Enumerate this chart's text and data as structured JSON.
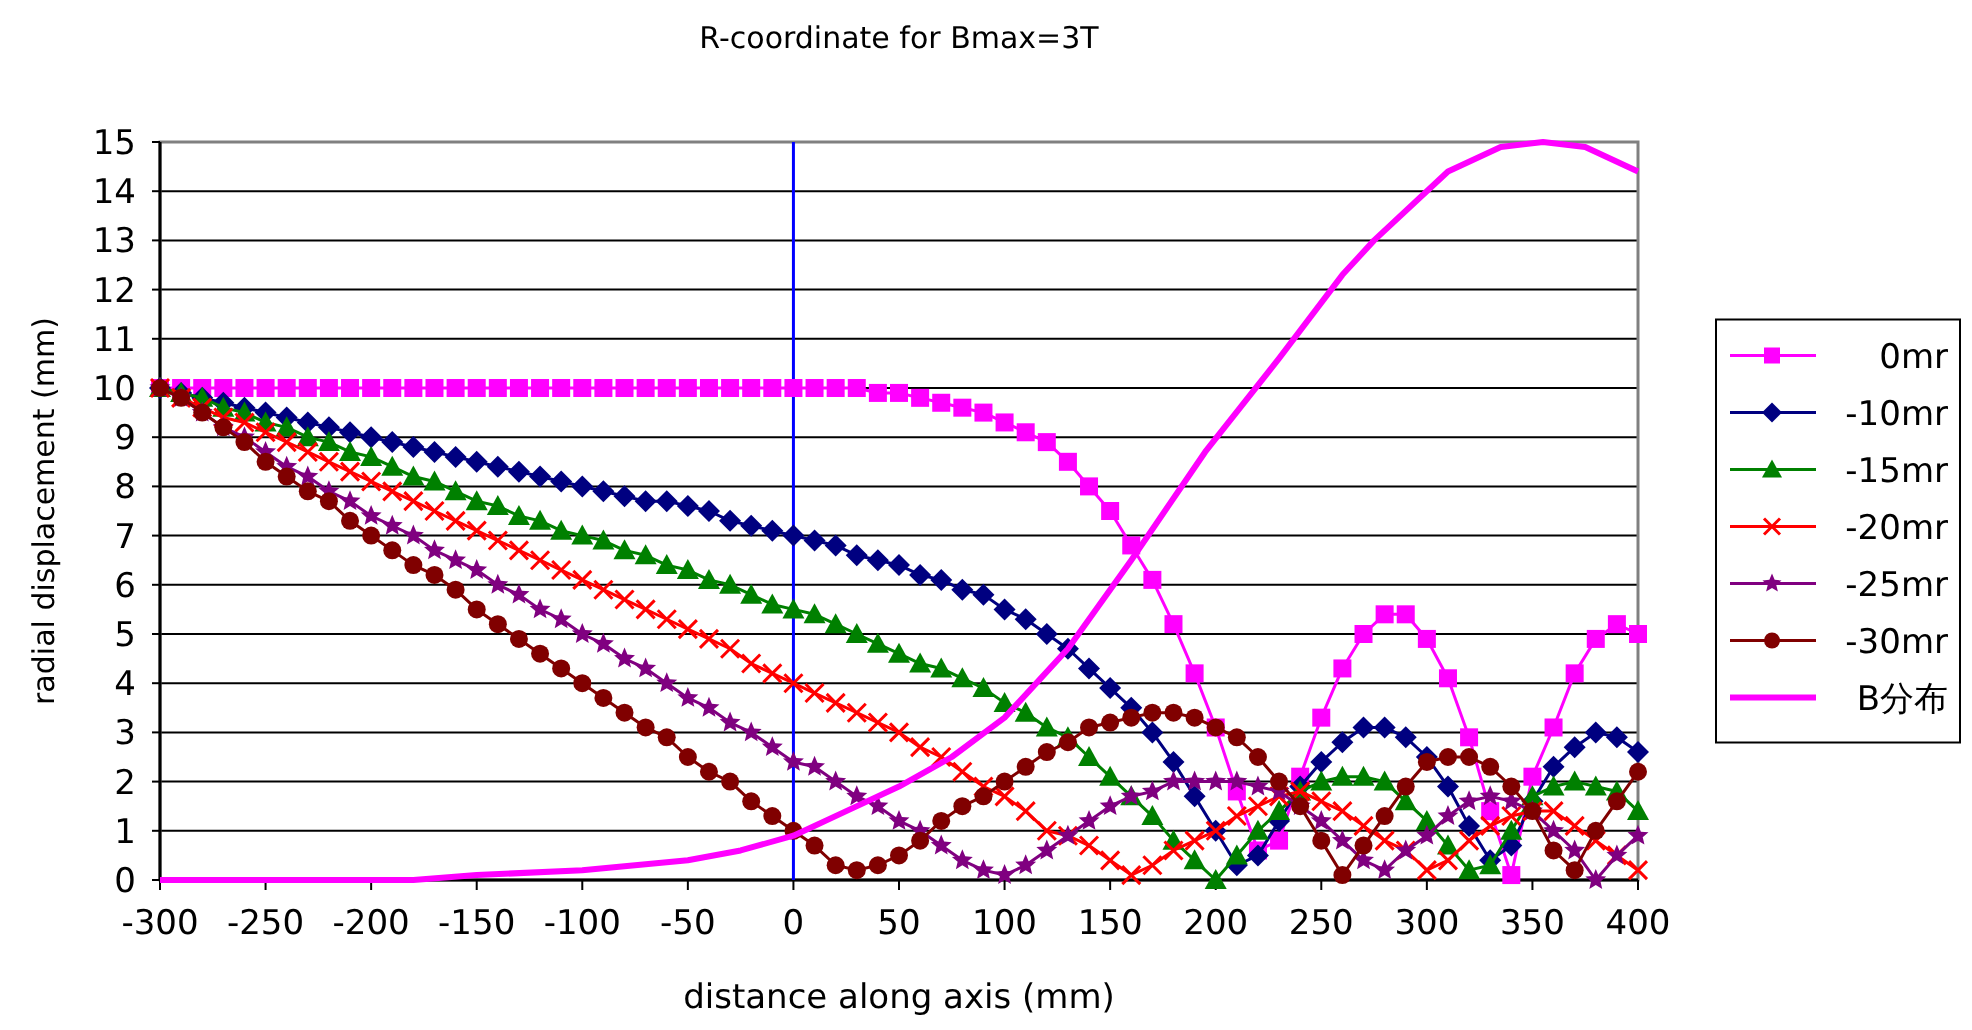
{
  "chart_data": {
    "type": "line",
    "title": "R-coordinate for Bmax=3T",
    "xlabel": "distance along axis (mm)",
    "ylabel": "radial displacement (mm)",
    "x": [
      -300,
      -290,
      -280,
      -270,
      -260,
      -250,
      -240,
      -230,
      -220,
      -210,
      -200,
      -190,
      -180,
      -170,
      -160,
      -150,
      -140,
      -130,
      -120,
      -110,
      -100,
      -90,
      -80,
      -70,
      -60,
      -50,
      -40,
      -30,
      -20,
      -10,
      0,
      10,
      20,
      30,
      40,
      50,
      60,
      70,
      80,
      90,
      100,
      110,
      120,
      130,
      140,
      150,
      160,
      170,
      180,
      190,
      200,
      210,
      220,
      230,
      240,
      250,
      260,
      270,
      280,
      290,
      300,
      310,
      320,
      330,
      340,
      350,
      360,
      370,
      380,
      390,
      400
    ],
    "series": [
      {
        "name": "0mr",
        "color": "#ff00ff",
        "marker": "square",
        "values": [
          10,
          10,
          10,
          10,
          10,
          10,
          10,
          10,
          10,
          10,
          10,
          10,
          10,
          10,
          10,
          10,
          10,
          10,
          10,
          10,
          10,
          10,
          10,
          10,
          10,
          10,
          10,
          10,
          10,
          10,
          10,
          10,
          10,
          10,
          9.9,
          9.9,
          9.8,
          9.7,
          9.6,
          9.5,
          9.3,
          9.1,
          8.9,
          8.5,
          8.0,
          7.5,
          6.8,
          6.1,
          5.2,
          4.2,
          3.1,
          1.8,
          0.6,
          0.8,
          2.1,
          3.3,
          4.3,
          5.0,
          5.4,
          5.4,
          4.9,
          4.1,
          2.9,
          1.4,
          0.1,
          2.1,
          3.1,
          4.2,
          4.9,
          5.2,
          5.0
        ]
      },
      {
        "name": "-10mr",
        "color": "#000080",
        "marker": "diamond",
        "values": [
          10,
          9.9,
          9.8,
          9.7,
          9.6,
          9.5,
          9.4,
          9.3,
          9.2,
          9.1,
          9.0,
          8.9,
          8.8,
          8.7,
          8.6,
          8.5,
          8.4,
          8.3,
          8.2,
          8.1,
          8.0,
          7.9,
          7.8,
          7.7,
          7.7,
          7.6,
          7.5,
          7.3,
          7.2,
          7.1,
          7.0,
          6.9,
          6.8,
          6.6,
          6.5,
          6.4,
          6.2,
          6.1,
          5.9,
          5.8,
          5.5,
          5.3,
          5.0,
          4.7,
          4.3,
          3.9,
          3.5,
          3.0,
          2.4,
          1.7,
          1.0,
          0.3,
          0.5,
          1.2,
          1.9,
          2.4,
          2.8,
          3.1,
          3.1,
          2.9,
          2.5,
          1.9,
          1.1,
          0.4,
          0.7,
          1.6,
          2.3,
          2.7,
          3.0,
          2.9,
          2.6
        ]
      },
      {
        "name": "-15mr",
        "color": "#008000",
        "marker": "triangle",
        "values": [
          10,
          9.9,
          9.8,
          9.6,
          9.5,
          9.3,
          9.2,
          9.0,
          8.9,
          8.7,
          8.6,
          8.4,
          8.2,
          8.1,
          7.9,
          7.7,
          7.6,
          7.4,
          7.3,
          7.1,
          7.0,
          6.9,
          6.7,
          6.6,
          6.4,
          6.3,
          6.1,
          6.0,
          5.8,
          5.6,
          5.5,
          5.4,
          5.2,
          5.0,
          4.8,
          4.6,
          4.4,
          4.3,
          4.1,
          3.9,
          3.6,
          3.4,
          3.1,
          2.9,
          2.5,
          2.1,
          1.7,
          1.3,
          0.8,
          0.4,
          0.0,
          0.5,
          1.0,
          1.4,
          1.8,
          2.0,
          2.1,
          2.1,
          2.0,
          1.6,
          1.2,
          0.7,
          0.2,
          0.3,
          1.0,
          1.7,
          1.9,
          2.0,
          1.9,
          1.8,
          1.4
        ]
      },
      {
        "name": "-20mr",
        "color": "#ff0000",
        "marker": "cross",
        "values": [
          10,
          9.8,
          9.6,
          9.4,
          9.3,
          9.1,
          8.9,
          8.7,
          8.5,
          8.3,
          8.1,
          7.9,
          7.7,
          7.5,
          7.3,
          7.1,
          6.9,
          6.7,
          6.5,
          6.3,
          6.1,
          5.9,
          5.7,
          5.5,
          5.3,
          5.1,
          4.9,
          4.7,
          4.4,
          4.2,
          4.0,
          3.8,
          3.6,
          3.4,
          3.2,
          3.0,
          2.7,
          2.5,
          2.2,
          1.9,
          1.7,
          1.4,
          1.0,
          0.9,
          0.7,
          0.4,
          0.1,
          0.3,
          0.6,
          0.8,
          1.0,
          1.3,
          1.5,
          1.7,
          1.8,
          1.6,
          1.4,
          1.1,
          0.8,
          0.6,
          0.2,
          0.4,
          0.8,
          1.1,
          1.3,
          1.4,
          1.4,
          1.1,
          0.8,
          0.5,
          0.2
        ]
      },
      {
        "name": "-25mr",
        "color": "#800080",
        "marker": "star",
        "values": [
          10,
          9.8,
          9.5,
          9.2,
          9.0,
          8.7,
          8.4,
          8.2,
          7.9,
          7.7,
          7.4,
          7.2,
          7.0,
          6.7,
          6.5,
          6.3,
          6.0,
          5.8,
          5.5,
          5.3,
          5.0,
          4.8,
          4.5,
          4.3,
          4.0,
          3.7,
          3.5,
          3.2,
          3.0,
          2.7,
          2.4,
          2.3,
          2.0,
          1.7,
          1.5,
          1.2,
          1.0,
          0.7,
          0.4,
          0.2,
          0.1,
          0.3,
          0.6,
          0.9,
          1.2,
          1.5,
          1.7,
          1.8,
          2.0,
          2.0,
          2.0,
          2.0,
          1.9,
          1.8,
          1.5,
          1.2,
          0.8,
          0.4,
          0.2,
          0.6,
          0.9,
          1.3,
          1.6,
          1.7,
          1.6,
          1.4,
          1.0,
          0.6,
          0.0,
          0.5,
          0.9
        ]
      },
      {
        "name": "-30mr",
        "color": "#800000",
        "marker": "circle",
        "values": [
          10,
          9.8,
          9.5,
          9.2,
          8.9,
          8.5,
          8.2,
          7.9,
          7.7,
          7.3,
          7.0,
          6.7,
          6.4,
          6.2,
          5.9,
          5.5,
          5.2,
          4.9,
          4.6,
          4.3,
          4.0,
          3.7,
          3.4,
          3.1,
          2.9,
          2.5,
          2.2,
          2.0,
          1.6,
          1.3,
          1.0,
          0.7,
          0.3,
          0.2,
          0.3,
          0.5,
          0.8,
          1.2,
          1.5,
          1.7,
          2.0,
          2.3,
          2.6,
          2.8,
          3.1,
          3.2,
          3.3,
          3.4,
          3.4,
          3.3,
          3.1,
          2.9,
          2.5,
          2.0,
          1.5,
          0.8,
          0.1,
          0.7,
          1.3,
          1.9,
          2.4,
          2.5,
          2.5,
          2.3,
          1.9,
          1.4,
          0.6,
          0.2,
          1.0,
          1.6,
          2.2
        ]
      },
      {
        "name": "B分布",
        "color": "#ff00ff",
        "marker": "none",
        "x": [
          -300,
          -250,
          -200,
          -180,
          -150,
          -100,
          -50,
          -25,
          0,
          25,
          50,
          75,
          100,
          130,
          160,
          195,
          230,
          260,
          275,
          310,
          335,
          355,
          375,
          400
        ],
        "values": [
          0,
          0,
          0,
          0,
          0.1,
          0.2,
          0.4,
          0.6,
          0.9,
          1.4,
          1.9,
          2.5,
          3.3,
          4.7,
          6.5,
          8.7,
          10.6,
          12.3,
          13.0,
          14.4,
          14.9,
          15.0,
          14.9,
          14.4
        ]
      }
    ],
    "xlim": [
      -300,
      400
    ],
    "xticks": [
      -300,
      -250,
      -200,
      -150,
      -100,
      -50,
      0,
      50,
      100,
      150,
      200,
      250,
      300,
      350,
      400
    ],
    "ylim": [
      0,
      15
    ],
    "yticks": [
      0,
      1,
      2,
      3,
      4,
      5,
      6,
      7,
      8,
      9,
      10,
      11,
      12,
      13,
      14,
      15
    ],
    "ref_lines": [
      {
        "axis": "x",
        "value": 0,
        "color": "#0000ff"
      }
    ],
    "grid": "y",
    "legend": "right"
  }
}
